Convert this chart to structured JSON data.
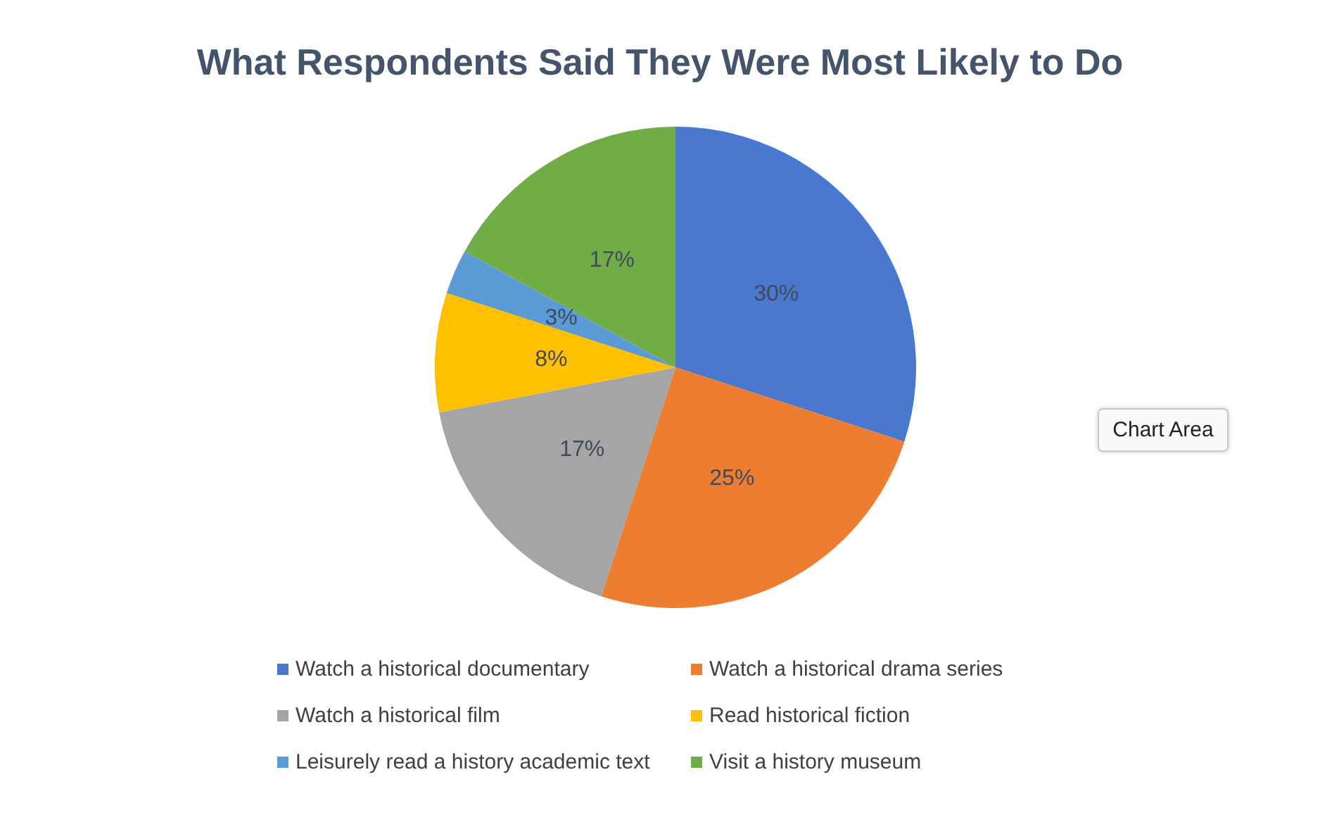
{
  "chart_data": {
    "type": "pie",
    "title": "What Respondents Said They Were Most Likely to Do",
    "categories": [
      "Watch a historical documentary",
      "Watch a historical drama series",
      "Watch a historical film",
      "Read historical fiction",
      "Leisurely read a history academic text",
      "Visit a history museum"
    ],
    "values": [
      30,
      25,
      17,
      8,
      3,
      17
    ],
    "colors": [
      "#4a78cf",
      "#ed7d31",
      "#a5a5a5",
      "#ffc000",
      "#5b9bd5",
      "#70ad47"
    ],
    "value_labels": [
      "30%",
      "25%",
      "17%",
      "8%",
      "3%",
      "17%"
    ],
    "legend": "bottom",
    "annotations": [
      "Chart Area"
    ]
  }
}
